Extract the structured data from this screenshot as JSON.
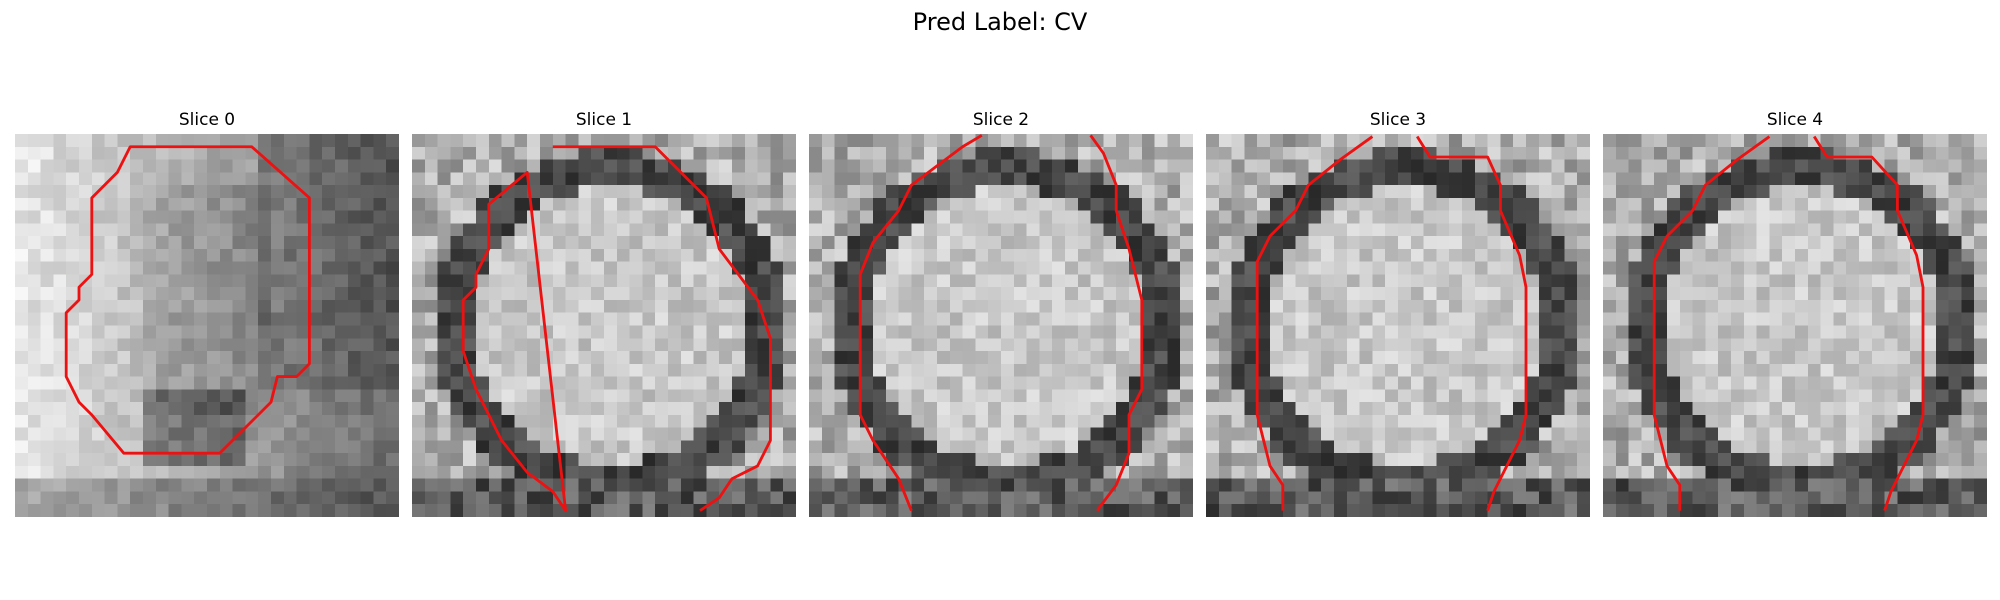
{
  "figure": {
    "title": "Pred Label: CV"
  },
  "slices": [
    {
      "label": "Slice 0",
      "kind": "off-center",
      "seed": 11
    },
    {
      "label": "Slice 1",
      "kind": "round",
      "seed": 23
    },
    {
      "label": "Slice 2",
      "kind": "round",
      "seed": 37
    },
    {
      "label": "Slice 3",
      "kind": "round",
      "seed": 41
    },
    {
      "label": "Slice 4",
      "kind": "round",
      "seed": 53
    }
  ],
  "colors": {
    "contour": "#ee1111",
    "background": "#ffffff"
  }
}
